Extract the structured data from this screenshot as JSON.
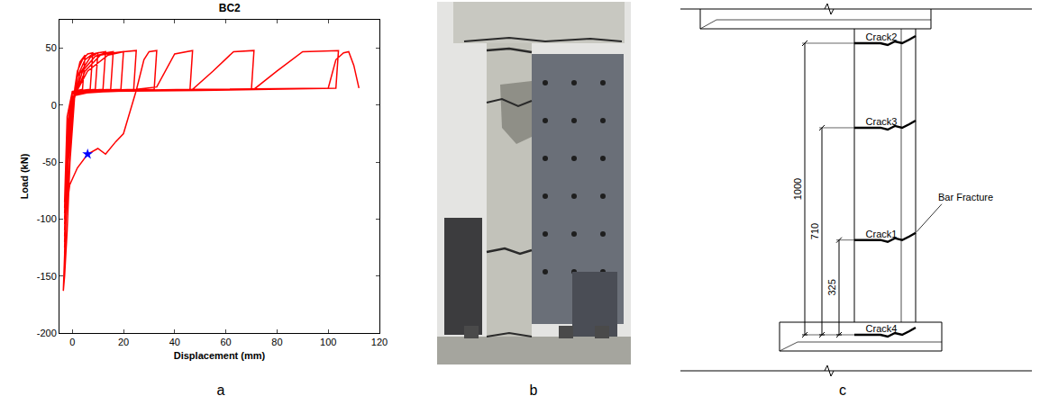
{
  "panel_labels": [
    "a",
    "b",
    "c"
  ],
  "chart_data": {
    "type": "line",
    "title": "BC2",
    "x_label": "Displacement (mm)",
    "y_label": "Load (kN)",
    "xlim": [
      -5,
      120
    ],
    "xticks": [
      0,
      20,
      40,
      60,
      80,
      100,
      120
    ],
    "ylim": [
      -200,
      75
    ],
    "yticks": [
      -200,
      -150,
      -100,
      -50,
      0,
      50
    ],
    "grid": false,
    "series": [
      {
        "color": "#ff0000",
        "line_style": "solid",
        "x": [
          0,
          -0.5,
          -1.2,
          -2,
          -3,
          -3.5,
          -2.5,
          -1,
          0,
          1,
          2,
          3,
          5,
          4,
          2,
          0,
          -1,
          -2,
          -3,
          -2,
          -1,
          0,
          1,
          2,
          4,
          6,
          8,
          7,
          4,
          0,
          -1,
          -2,
          -3,
          -2,
          0,
          2,
          5,
          8,
          10,
          9,
          5,
          0,
          -1,
          -3,
          -2,
          0,
          3,
          7,
          10,
          13,
          12,
          6,
          0,
          -1,
          -3,
          -2,
          0,
          4,
          9,
          13,
          16,
          15,
          8,
          0,
          -1,
          -3,
          -2,
          0,
          5,
          11,
          16,
          20,
          19,
          10,
          0,
          -1,
          -3,
          -2,
          0,
          6,
          14,
          20,
          25,
          24,
          12,
          0,
          -1,
          -3,
          -1,
          2,
          6,
          10,
          13,
          17,
          20,
          25,
          28,
          30,
          33,
          32,
          15,
          0,
          -1,
          -3,
          -2,
          0,
          10,
          25,
          33,
          40,
          47,
          46,
          20,
          0,
          -1,
          -3,
          -2,
          0,
          20,
          47,
          55,
          63,
          71,
          70,
          30,
          0,
          -1,
          -3,
          -2,
          0,
          30,
          71,
          80,
          90,
          104,
          103,
          50,
          5,
          0,
          -1,
          -3,
          -2,
          0,
          50,
          100,
          103,
          106,
          108,
          110,
          112
        ],
        "values": [
          0,
          -30,
          -70,
          -110,
          -150,
          -163,
          -100,
          -50,
          -15,
          10,
          28,
          38,
          44,
          14,
          13,
          12,
          0,
          -50,
          -138,
          -70,
          -30,
          -5,
          15,
          30,
          40,
          45,
          46,
          14,
          13,
          12,
          0,
          -40,
          -130,
          -55,
          -5,
          25,
          40,
          45,
          46,
          14,
          13,
          12,
          -5,
          -125,
          -50,
          -3,
          28,
          42,
          46,
          47,
          14,
          13,
          12,
          -5,
          -120,
          -45,
          0,
          30,
          43,
          46,
          47,
          14,
          13,
          12,
          -5,
          -115,
          -40,
          2,
          30,
          44,
          46,
          47,
          14,
          13,
          12,
          -5,
          -110,
          -35,
          5,
          30,
          44,
          47,
          48,
          14,
          13,
          12,
          -5,
          -105,
          -70,
          -55,
          -43,
          -38,
          -43,
          -32,
          -25,
          13,
          40,
          47,
          48,
          14,
          13,
          12,
          -5,
          -100,
          -30,
          8,
          13,
          14,
          16,
          45,
          48,
          14,
          13,
          12,
          -5,
          -95,
          -25,
          10,
          13,
          14,
          30,
          47,
          48,
          14,
          13,
          12,
          -5,
          -90,
          -20,
          11,
          13,
          14,
          30,
          47,
          48,
          15,
          13,
          12,
          10,
          -5,
          -85,
          -10,
          12,
          14,
          15,
          40,
          46,
          47,
          35,
          15
        ]
      },
      {
        "type": "scatter",
        "color": "#0000ff",
        "marker": "star",
        "x": [
          6
        ],
        "values": [
          -43
        ]
      }
    ]
  },
  "diagram": {
    "cracks": [
      "Crack2",
      "Crack3",
      "Crack1",
      "Crack4"
    ],
    "datum": "Crack4",
    "dimensions": [
      {
        "value": 1000,
        "to": "Crack2"
      },
      {
        "value": 710,
        "to": "Crack3"
      },
      {
        "value": 325,
        "to": "Crack1"
      }
    ],
    "bar_fracture": {
      "label": "Bar Fracture",
      "at": "Crack1"
    }
  }
}
